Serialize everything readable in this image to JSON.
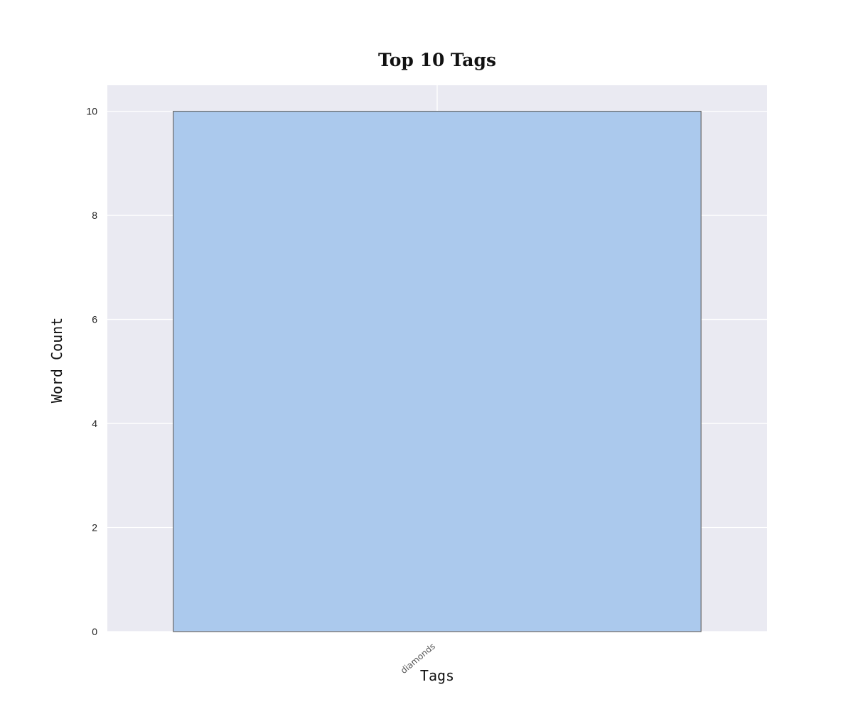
{
  "chart_data": {
    "type": "bar",
    "title": "Top 10 Tags",
    "xlabel": "Tags",
    "ylabel": "Word Count",
    "categories": [
      "diamonds"
    ],
    "values": [
      10
    ],
    "ylim": [
      0,
      10.5
    ],
    "yticks": [
      0,
      2,
      4,
      6,
      8,
      10
    ],
    "grid": true,
    "legend": "none",
    "colors": {
      "plot_background": "#eaeaf2",
      "grid": "#ffffff",
      "bar_fill": "#abc9ed",
      "bar_edge": "#666666"
    }
  }
}
